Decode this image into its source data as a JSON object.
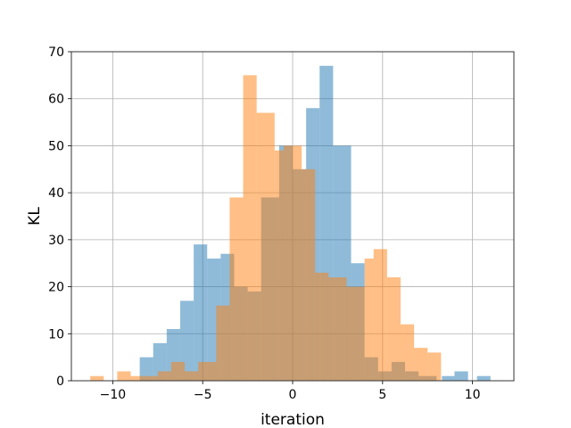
{
  "chart_data": {
    "type": "bar",
    "subtype": "overlaid-histogram",
    "title": "",
    "xlabel": "iteration",
    "ylabel": "KL",
    "xlim": [
      -12.3,
      12.3
    ],
    "ylim": [
      0,
      70
    ],
    "x_ticks": [
      -10,
      -5,
      0,
      5,
      10
    ],
    "x_tick_labels": [
      "−10",
      "−5",
      "0",
      "5",
      "10"
    ],
    "y_ticks": [
      0,
      10,
      20,
      30,
      40,
      50,
      60,
      70
    ],
    "y_tick_labels": [
      "0",
      "10",
      "20",
      "30",
      "40",
      "50",
      "60",
      "70"
    ],
    "grid": true,
    "legend": "none",
    "series": [
      {
        "color": "#1f77b4",
        "opacity": 0.5,
        "bins": [
          {
            "x0": -8.5,
            "x1": -7.75,
            "value": 5
          },
          {
            "x0": -7.75,
            "x1": -7.0,
            "value": 8
          },
          {
            "x0": -7.0,
            "x1": -6.25,
            "value": 11
          },
          {
            "x0": -6.25,
            "x1": -5.5,
            "value": 17
          },
          {
            "x0": -5.5,
            "x1": -4.75,
            "value": 29
          },
          {
            "x0": -4.75,
            "x1": -4.0,
            "value": 26
          },
          {
            "x0": -4.0,
            "x1": -3.25,
            "value": 27
          },
          {
            "x0": -3.25,
            "x1": -2.5,
            "value": 20
          },
          {
            "x0": -2.5,
            "x1": -1.75,
            "value": 19
          },
          {
            "x0": -1.75,
            "x1": -0.75,
            "value": 39
          },
          {
            "x0": -0.75,
            "x1": 0.0,
            "value": 50
          },
          {
            "x0": 0.0,
            "x1": 0.75,
            "value": 45
          },
          {
            "x0": 0.75,
            "x1": 1.5,
            "value": 58
          },
          {
            "x0": 1.5,
            "x1": 2.25,
            "value": 67
          },
          {
            "x0": 2.25,
            "x1": 3.25,
            "value": 50
          },
          {
            "x0": 3.25,
            "x1": 4.0,
            "value": 25
          },
          {
            "x0": 4.0,
            "x1": 4.75,
            "value": 5
          },
          {
            "x0": 4.75,
            "x1": 5.5,
            "value": 2
          },
          {
            "x0": 5.5,
            "x1": 6.25,
            "value": 4
          },
          {
            "x0": 6.25,
            "x1": 7.0,
            "value": 2
          },
          {
            "x0": 7.0,
            "x1": 8.0,
            "value": 1
          },
          {
            "x0": 8.3,
            "x1": 9.0,
            "value": 1
          },
          {
            "x0": 9.0,
            "x1": 9.75,
            "value": 2
          },
          {
            "x0": 10.25,
            "x1": 11.0,
            "value": 1
          }
        ]
      },
      {
        "color": "#ff7f0e",
        "opacity": 0.5,
        "bins": [
          {
            "x0": -11.25,
            "x1": -10.5,
            "value": 1
          },
          {
            "x0": -9.75,
            "x1": -9.0,
            "value": 2
          },
          {
            "x0": -9.0,
            "x1": -8.25,
            "value": 1
          },
          {
            "x0": -8.25,
            "x1": -7.5,
            "value": 1
          },
          {
            "x0": -7.5,
            "x1": -6.75,
            "value": 2
          },
          {
            "x0": -6.75,
            "x1": -6.0,
            "value": 4
          },
          {
            "x0": -6.0,
            "x1": -5.25,
            "value": 2
          },
          {
            "x0": -5.25,
            "x1": -4.25,
            "value": 4
          },
          {
            "x0": -4.25,
            "x1": -3.5,
            "value": 16
          },
          {
            "x0": -3.5,
            "x1": -2.75,
            "value": 39
          },
          {
            "x0": -2.75,
            "x1": -2.0,
            "value": 65
          },
          {
            "x0": -2.0,
            "x1": -1.0,
            "value": 57
          },
          {
            "x0": -1.0,
            "x1": -0.5,
            "value": 49
          },
          {
            "x0": -0.5,
            "x1": 0.5,
            "value": 50
          },
          {
            "x0": 0.5,
            "x1": 1.25,
            "value": 45
          },
          {
            "x0": 1.25,
            "x1": 2.0,
            "value": 23
          },
          {
            "x0": 2.0,
            "x1": 3.0,
            "value": 22
          },
          {
            "x0": 3.0,
            "x1": 4.0,
            "value": 20
          },
          {
            "x0": 4.0,
            "x1": 4.5,
            "value": 26
          },
          {
            "x0": 4.5,
            "x1": 5.25,
            "value": 28
          },
          {
            "x0": 5.25,
            "x1": 6.0,
            "value": 22
          },
          {
            "x0": 6.0,
            "x1": 6.75,
            "value": 12
          },
          {
            "x0": 6.75,
            "x1": 7.5,
            "value": 7
          },
          {
            "x0": 7.5,
            "x1": 8.25,
            "value": 6
          }
        ]
      }
    ]
  }
}
